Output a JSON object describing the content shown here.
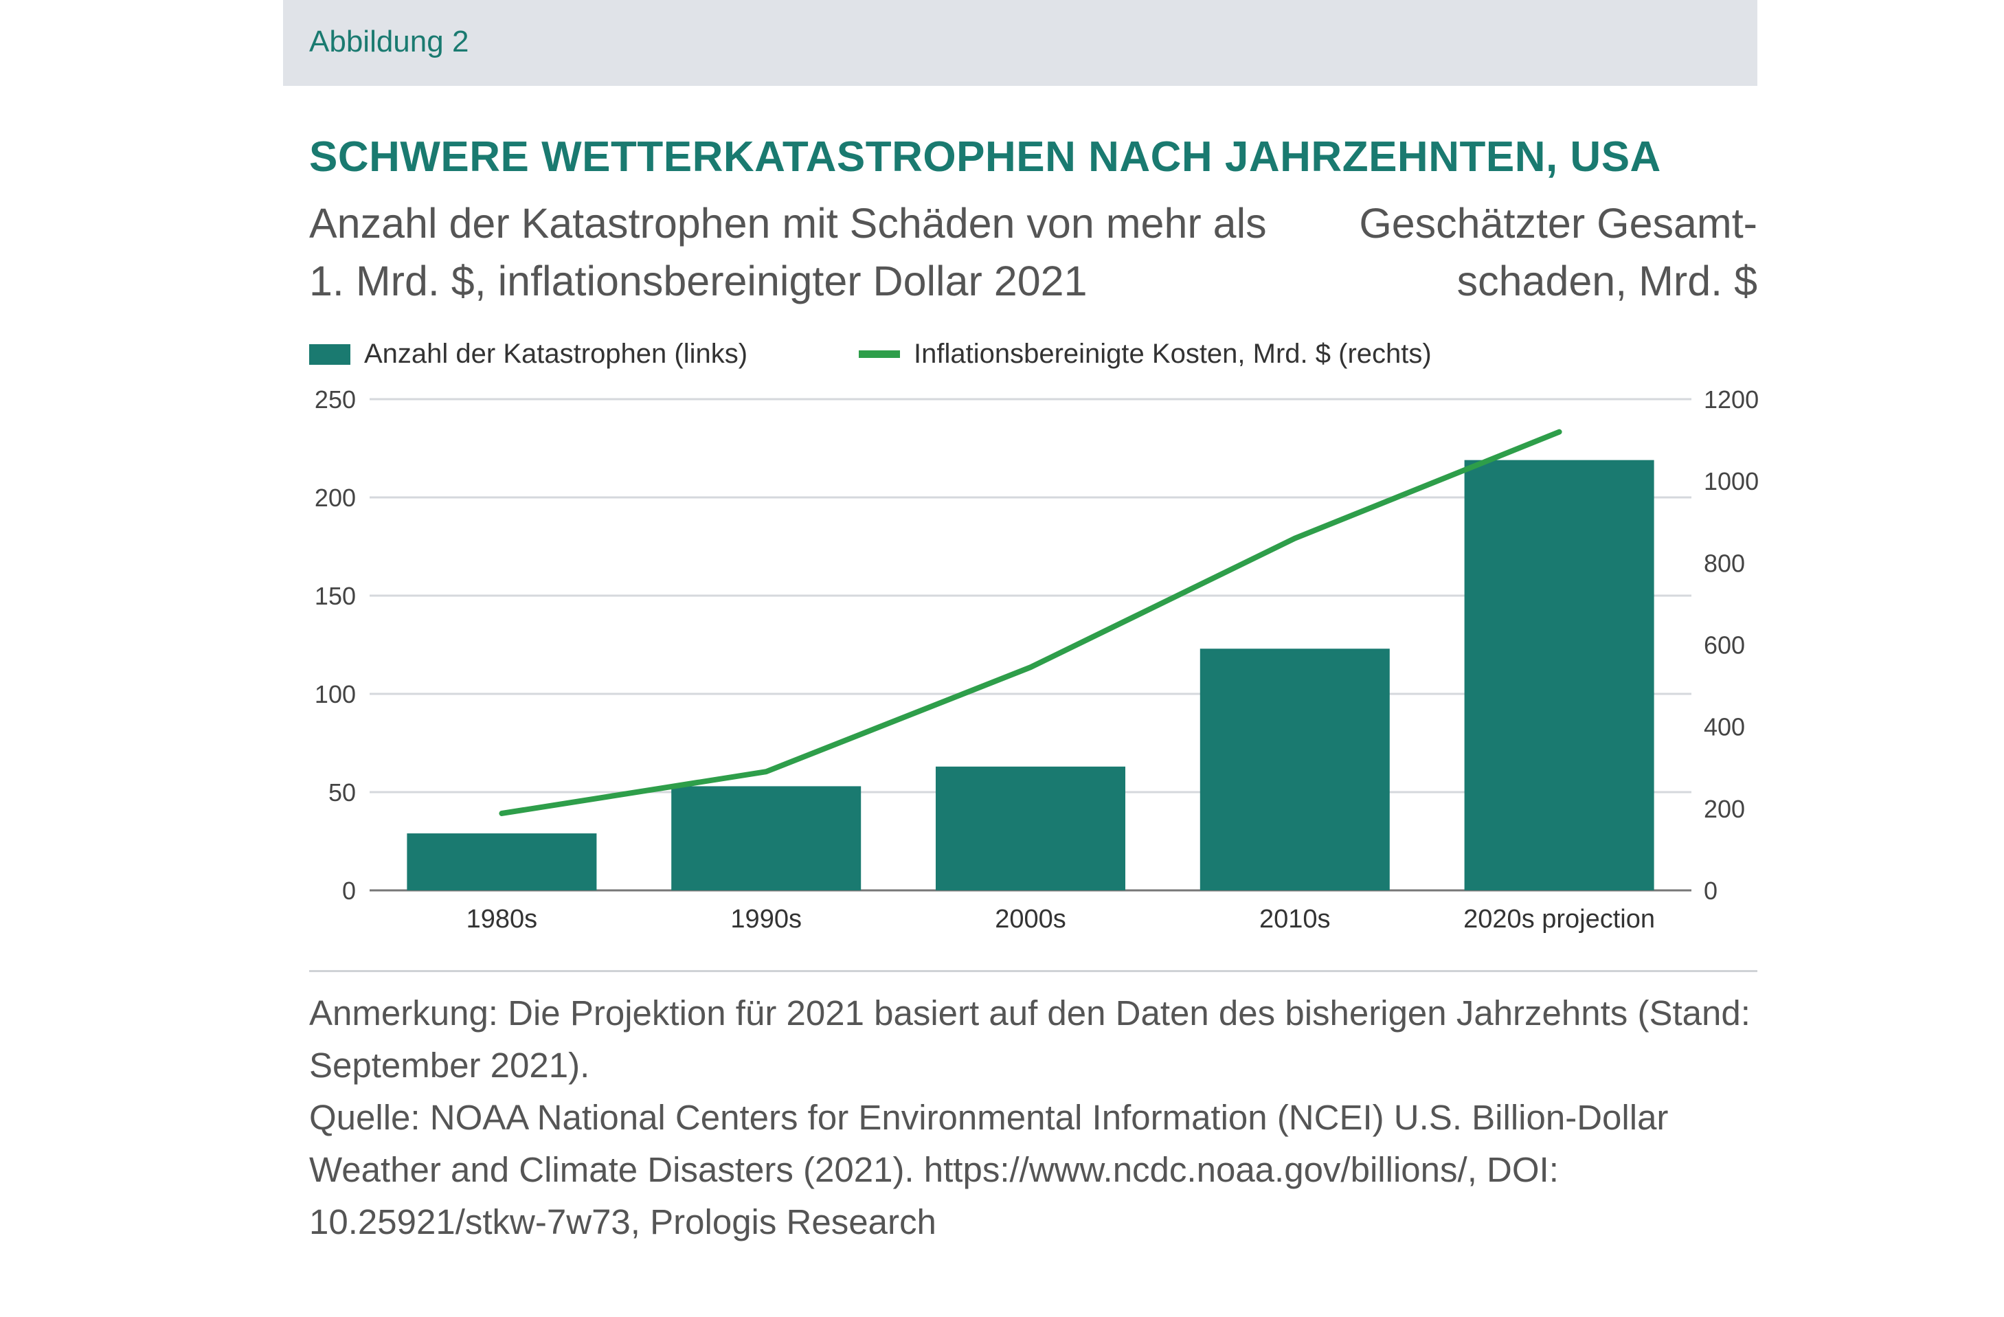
{
  "figure_label": "Abbildung 2",
  "title": "SCHWERE WETTERKATASTROPHEN NACH JAHRZEHNTEN, USA",
  "subtitle_left": "Anzahl der Katastrophen mit Schäden von mehr als 1. Mrd. $, inflationsbereinigter Dollar 2021",
  "subtitle_right": "Geschätzter Gesamt-schaden, Mrd. $",
  "legend": {
    "bars": "Anzahl der Katastrophen (links)",
    "line": "Inflationsbereinigte Kosten, Mrd. $ (rechts)"
  },
  "colors": {
    "bar": "#1a7a70",
    "line": "#2e9e4a",
    "grid": "#d5d8dc",
    "title": "#1a7a70"
  },
  "chart_data": {
    "type": "bar",
    "categories": [
      "1980s",
      "1990s",
      "2000s",
      "2010s",
      "2020s projection"
    ],
    "series": [
      {
        "name": "Anzahl der Katastrophen (links)",
        "type": "bar",
        "axis": "left",
        "values": [
          29,
          53,
          63,
          123,
          219
        ]
      },
      {
        "name": "Inflationsbereinigte Kosten, Mrd. $ (rechts)",
        "type": "line",
        "axis": "right",
        "values": [
          188,
          290,
          545,
          860,
          1120
        ]
      }
    ],
    "y_left": {
      "min": 0,
      "max": 250,
      "ticks": [
        0,
        50,
        100,
        150,
        200,
        250
      ]
    },
    "y_right": {
      "min": 0,
      "max": 1200,
      "ticks": [
        0,
        200,
        400,
        600,
        800,
        1000,
        1200
      ]
    },
    "grid": true,
    "legend_position": "top-left"
  },
  "notes": [
    "Anmerkung: Die Projektion für 2021 basiert auf den Daten des bisherigen Jahrzehnts (Stand: September 2021).",
    "Quelle: NOAA National Centers for Environmental Information (NCEI) U.S. Billion-Dollar Weather and Climate Disasters (2021). https://www.ncdc.noaa.gov/billions/, DOI: 10.25921/stkw-7w73, Prologis Research"
  ]
}
